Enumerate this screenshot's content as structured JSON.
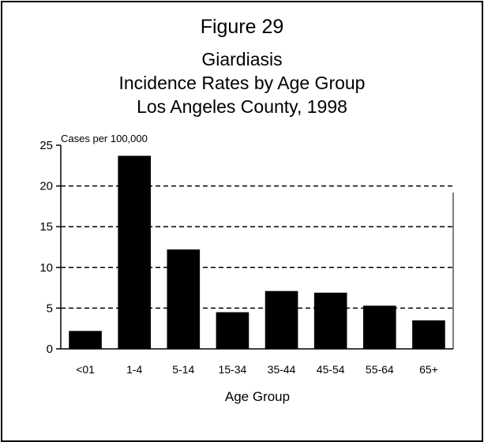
{
  "figure_label": "Figure 29",
  "chart_data": {
    "type": "bar",
    "title_lines": [
      "Giardiasis",
      "Incidence Rates by Age Group",
      "Los Angeles County, 1998"
    ],
    "ylabel": "Cases per 100,000",
    "xlabel": "Age Group",
    "categories": [
      "<01",
      "1-4",
      "5-14",
      "15-34",
      "35-44",
      "45-54",
      "55-64",
      "65+"
    ],
    "values": [
      2.2,
      23.7,
      12.2,
      4.5,
      7.1,
      6.9,
      5.3,
      3.5
    ],
    "ylim": [
      0,
      25
    ],
    "yticks": [
      0,
      5,
      10,
      15,
      20,
      25
    ],
    "grid": "dashed horizontal",
    "bar_color": "#000000"
  }
}
